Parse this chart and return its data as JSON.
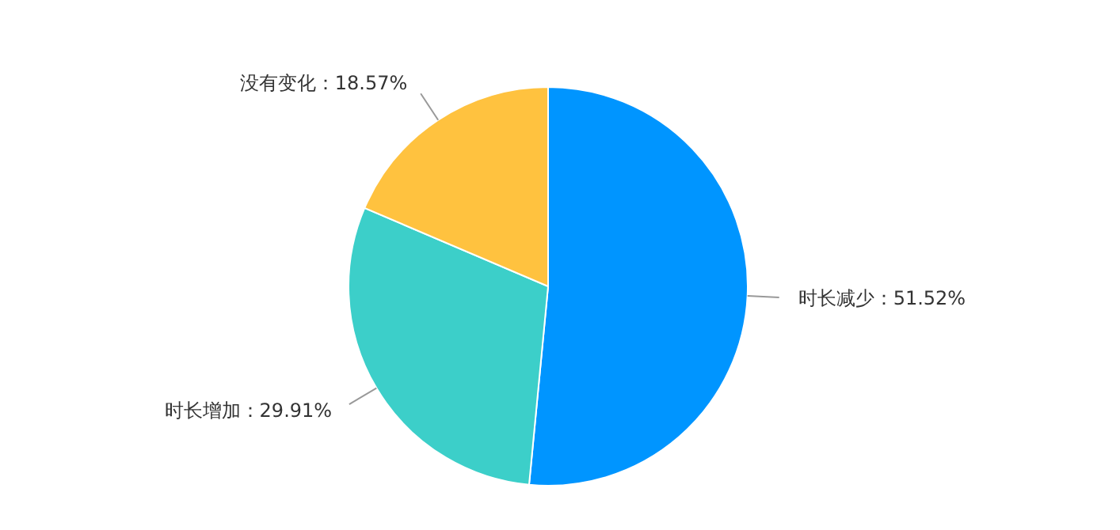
{
  "chart_data": {
    "type": "pie",
    "categories": [
      "时长减少",
      "时长增加",
      "没有变化"
    ],
    "values": [
      51.52,
      29.91,
      18.57
    ],
    "colors": [
      "#0095ff",
      "#3ccfc9",
      "#ffc23f"
    ],
    "value_labels": [
      "51.52%",
      "29.91%",
      "18.57%"
    ],
    "legend": false
  }
}
